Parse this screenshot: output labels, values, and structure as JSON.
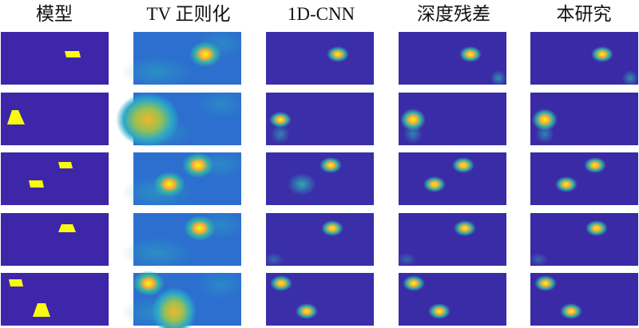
{
  "headers": [
    "模型",
    "TV 正则化",
    "1D-CNN",
    "深度残差",
    "本研究"
  ]
}
